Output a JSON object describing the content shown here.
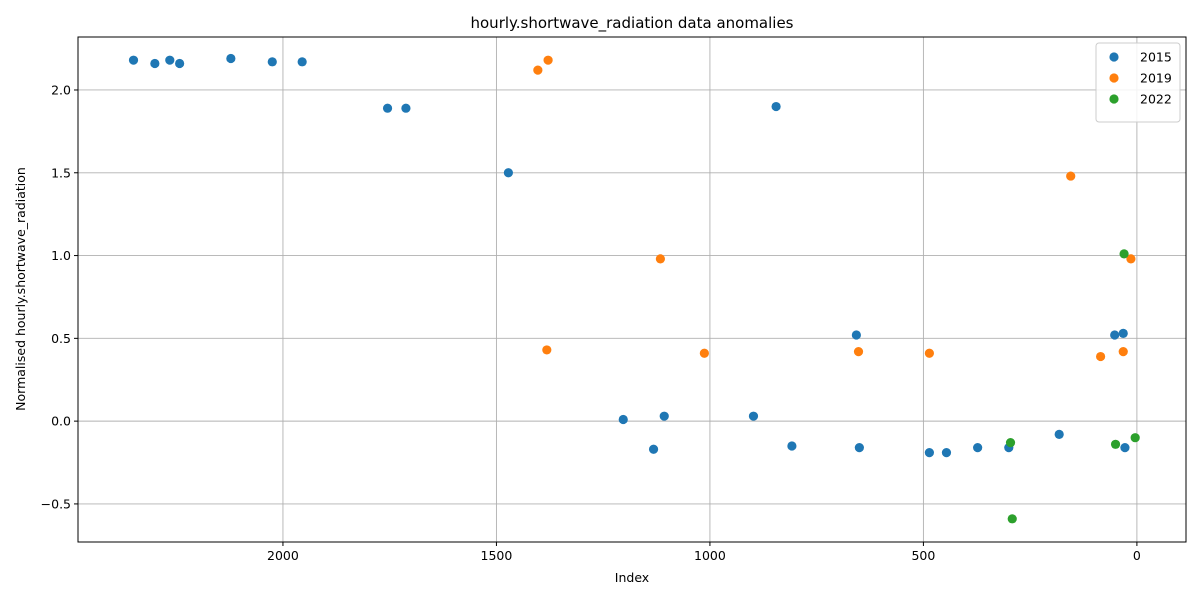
{
  "chart_data": {
    "type": "scatter",
    "title": "hourly.shortwave_radiation data anomalies",
    "xlabel": "Index",
    "ylabel": "Normalised hourly.shortwave_radiation",
    "x_reversed": true,
    "xlim": [
      2480,
      -115
    ],
    "ylim": [
      -0.73,
      2.32
    ],
    "x_ticks": [
      0,
      500,
      1000,
      1500,
      2000
    ],
    "y_ticks": [
      -0.5,
      0.0,
      0.5,
      1.0,
      1.5,
      2.0
    ],
    "x_tick_labels": [
      "0",
      "500",
      "1000",
      "1500",
      "2000"
    ],
    "y_tick_labels": [
      "−0.5",
      "0.0",
      "0.5",
      "1.0",
      "1.5",
      "2.0"
    ],
    "grid": true,
    "legend_position": "top-right",
    "series": [
      {
        "name": "2015",
        "color": "#1f77b4",
        "points": [
          [
            2350,
            2.18
          ],
          [
            2300,
            2.16
          ],
          [
            2265,
            2.18
          ],
          [
            2242,
            2.16
          ],
          [
            2122,
            2.19
          ],
          [
            2025,
            2.17
          ],
          [
            1955,
            2.17
          ],
          [
            1755,
            1.89
          ],
          [
            1712,
            1.89
          ],
          [
            1472,
            1.5
          ],
          [
            845,
            1.9
          ],
          [
            657,
            0.52
          ],
          [
            52,
            0.52
          ],
          [
            32,
            0.53
          ],
          [
            1203,
            0.01
          ],
          [
            1107,
            0.03
          ],
          [
            898,
            0.03
          ],
          [
            1132,
            -0.17
          ],
          [
            808,
            -0.15
          ],
          [
            650,
            -0.16
          ],
          [
            486,
            -0.19
          ],
          [
            446,
            -0.19
          ],
          [
            373,
            -0.16
          ],
          [
            300,
            -0.16
          ],
          [
            182,
            -0.08
          ],
          [
            28,
            -0.16
          ]
        ]
      },
      {
        "name": "2019",
        "color": "#ff7f0e",
        "points": [
          [
            1403,
            2.12
          ],
          [
            1379,
            2.18
          ],
          [
            1116,
            0.98
          ],
          [
            1382,
            0.43
          ],
          [
            1013,
            0.41
          ],
          [
            652,
            0.42
          ],
          [
            486,
            0.41
          ],
          [
            155,
            1.48
          ],
          [
            85,
            0.39
          ],
          [
            32,
            0.42
          ],
          [
            14,
            0.98
          ]
        ]
      },
      {
        "name": "2022",
        "color": "#2ca02c",
        "points": [
          [
            30,
            1.01
          ],
          [
            296,
            -0.13
          ],
          [
            50,
            -0.14
          ],
          [
            4,
            -0.1
          ],
          [
            292,
            -0.59
          ]
        ]
      }
    ]
  }
}
